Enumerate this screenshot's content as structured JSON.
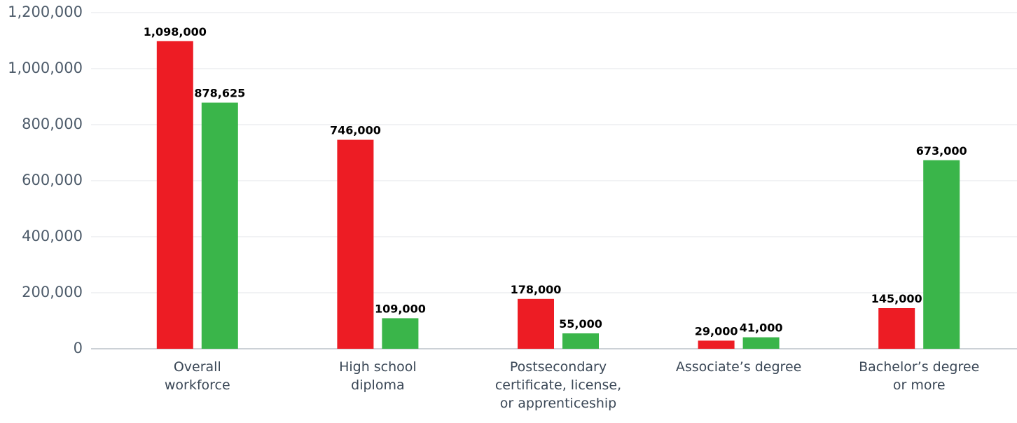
{
  "chart_data": {
    "type": "bar",
    "categories": [
      "Overall\nworkforce",
      "High school\ndiploma",
      "Postsecondary\ncertificate, license,\nor apprenticeship",
      "Associate’s degree",
      "Bachelor’s degree\nor more"
    ],
    "series": [
      {
        "color": "#ed1c24",
        "values": [
          1098000,
          746000,
          178000,
          29000,
          145000
        ],
        "value_labels": [
          "1,098,000",
          "746,000",
          "178,000",
          "29,000",
          "145,000"
        ]
      },
      {
        "color": "#3ab54a",
        "values": [
          878625,
          109000,
          55000,
          41000,
          673000
        ],
        "value_labels": [
          "878,625",
          "109,000",
          "55,000",
          "41,000",
          "673,000"
        ]
      }
    ],
    "ylim": [
      0,
      1200000
    ],
    "yticks": [
      0,
      {
        "value": 200000,
        "label": "200,000"
      },
      {
        "value": 400000,
        "label": "400,000"
      },
      {
        "value": 600000,
        "label": "600,000"
      },
      {
        "value": 800000,
        "label": "800,000"
      },
      {
        "value": 1000000,
        "label": "1,000,000"
      },
      {
        "value": 1200000,
        "label": "1,200,000"
      }
    ],
    "grid": true
  }
}
